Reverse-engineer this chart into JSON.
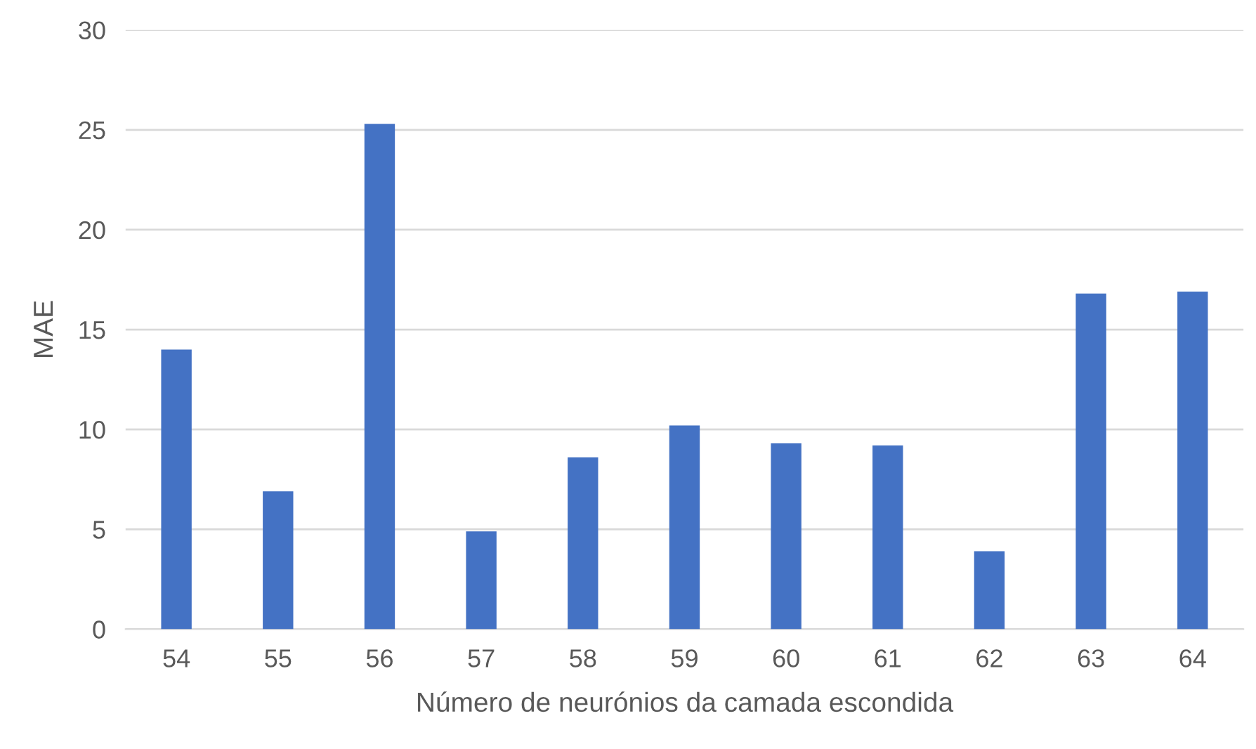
{
  "chart_data": {
    "type": "bar",
    "xlabel": "Número de neurónios da camada escondida",
    "ylabel": "MAE",
    "categories": [
      "54",
      "55",
      "56",
      "57",
      "58",
      "59",
      "60",
      "61",
      "62",
      "63",
      "64"
    ],
    "values": [
      14.0,
      6.9,
      25.3,
      4.9,
      8.6,
      10.2,
      9.3,
      9.2,
      3.9,
      16.8,
      16.9
    ],
    "color": "#4472c4",
    "ylim": [
      0,
      30
    ],
    "yticks": [
      0,
      5,
      10,
      15,
      20,
      25,
      30
    ],
    "grid": "y",
    "legend": false
  }
}
